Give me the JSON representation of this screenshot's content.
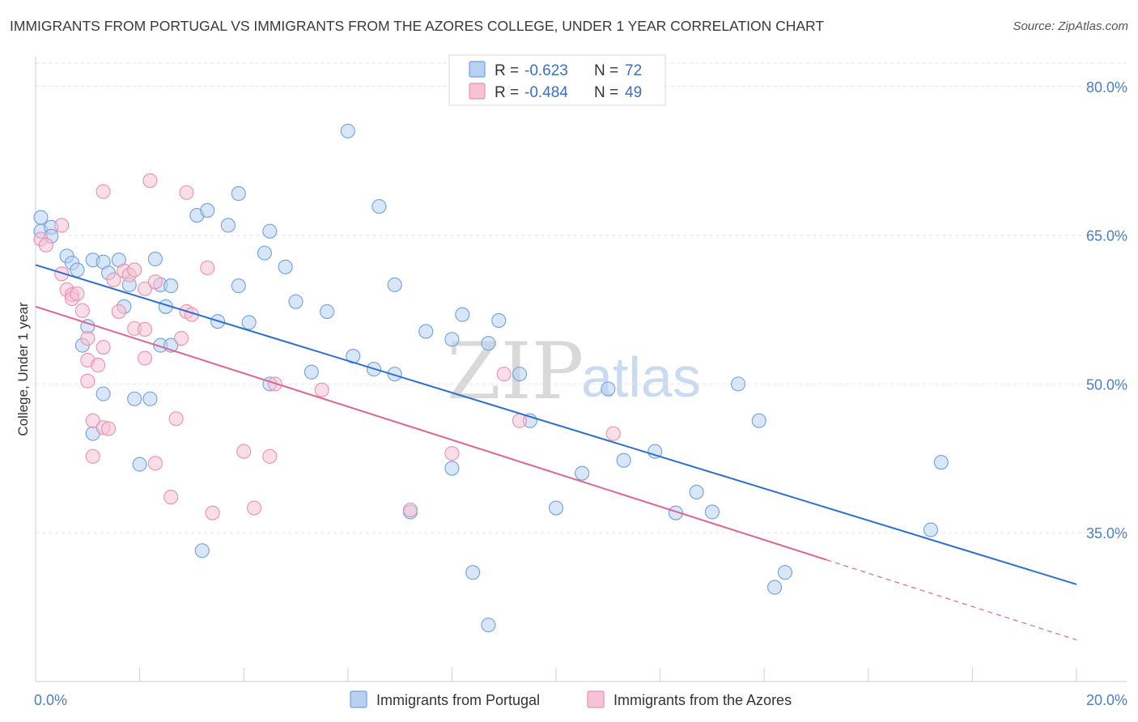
{
  "header": {
    "title": "IMMIGRANTS FROM PORTUGAL VS IMMIGRANTS FROM THE AZORES COLLEGE, UNDER 1 YEAR CORRELATION CHART",
    "source": "Source: ZipAtlas.com"
  },
  "watermark": {
    "zip": "ZIP",
    "atlas": "atlas"
  },
  "legend": {
    "r_label": "R =",
    "n_label": "N =",
    "series": [
      {
        "name": "Immigrants from Portugal",
        "r": "-0.623",
        "n": "72",
        "color": "#6fa0e0",
        "fill": "#b9d1f1",
        "line": "#2a6fd1"
      },
      {
        "name": "Immigrants from the Azores",
        "r": "-0.484",
        "n": "49",
        "color": "#ec8fae",
        "fill": "#f6c3d4",
        "line": "#e0648f"
      }
    ]
  },
  "chart_data": {
    "type": "scatter",
    "title": "IMMIGRANTS FROM PORTUGAL VS IMMIGRANTS FROM THE AZORES COLLEGE, UNDER 1 YEAR CORRELATION CHART",
    "xlabel": "",
    "ylabel": "College, Under 1 year",
    "xlim": [
      0,
      20
    ],
    "ylim": [
      20,
      83
    ],
    "x_ticks": [
      "0.0%",
      "20.0%"
    ],
    "y_ticks": [
      {
        "value": 80,
        "label": "80.0%"
      },
      {
        "value": 65,
        "label": "65.0%"
      },
      {
        "value": 50,
        "label": "50.0%"
      },
      {
        "value": 35,
        "label": "35.0%"
      }
    ],
    "series": [
      {
        "name": "Immigrants from Portugal",
        "trend": {
          "x0": 0,
          "y0": 62.0,
          "x1": 20,
          "y1": 29.8,
          "dashed_from": null
        },
        "points": [
          [
            0.1,
            66.8
          ],
          [
            0.1,
            65.4
          ],
          [
            0.3,
            65.8
          ],
          [
            0.3,
            64.9
          ],
          [
            0.6,
            62.9
          ],
          [
            0.7,
            62.2
          ],
          [
            0.8,
            61.5
          ],
          [
            1.1,
            62.5
          ],
          [
            1.0,
            55.8
          ],
          [
            0.9,
            53.9
          ],
          [
            1.3,
            62.3
          ],
          [
            1.4,
            61.2
          ],
          [
            1.6,
            62.5
          ],
          [
            1.7,
            57.8
          ],
          [
            1.8,
            60.0
          ],
          [
            1.3,
            49.0
          ],
          [
            1.9,
            48.5
          ],
          [
            2.0,
            41.9
          ],
          [
            2.2,
            48.5
          ],
          [
            2.3,
            62.6
          ],
          [
            2.4,
            60.0
          ],
          [
            2.5,
            57.8
          ],
          [
            2.6,
            59.9
          ],
          [
            2.4,
            53.9
          ],
          [
            2.6,
            53.9
          ],
          [
            3.1,
            67.0
          ],
          [
            3.3,
            67.5
          ],
          [
            3.7,
            66.0
          ],
          [
            3.9,
            69.2
          ],
          [
            3.9,
            59.9
          ],
          [
            3.5,
            56.3
          ],
          [
            4.1,
            56.2
          ],
          [
            4.4,
            63.2
          ],
          [
            4.5,
            65.4
          ],
          [
            4.8,
            61.8
          ],
          [
            5.0,
            58.3
          ],
          [
            4.5,
            50.0
          ],
          [
            5.3,
            51.2
          ],
          [
            5.6,
            57.3
          ],
          [
            6.0,
            75.5
          ],
          [
            6.1,
            52.8
          ],
          [
            6.5,
            51.5
          ],
          [
            6.6,
            67.9
          ],
          [
            6.9,
            60.0
          ],
          [
            6.9,
            51.0
          ],
          [
            7.5,
            55.3
          ],
          [
            7.2,
            37.1
          ],
          [
            8.0,
            54.5
          ],
          [
            8.2,
            57.0
          ],
          [
            8.0,
            41.5
          ],
          [
            8.4,
            31.0
          ],
          [
            8.7,
            54.1
          ],
          [
            8.9,
            56.4
          ],
          [
            8.7,
            25.7
          ],
          [
            9.3,
            51.0
          ],
          [
            9.5,
            46.3
          ],
          [
            10.0,
            37.5
          ],
          [
            10.5,
            41.0
          ],
          [
            11.0,
            49.5
          ],
          [
            11.3,
            42.3
          ],
          [
            11.9,
            43.2
          ],
          [
            12.3,
            37.0
          ],
          [
            12.7,
            39.1
          ],
          [
            13.5,
            50.0
          ],
          [
            13.0,
            37.1
          ],
          [
            13.9,
            46.3
          ],
          [
            14.2,
            29.5
          ],
          [
            14.4,
            31.0
          ],
          [
            17.2,
            35.3
          ],
          [
            17.4,
            42.1
          ],
          [
            1.1,
            45.0
          ],
          [
            3.2,
            33.2
          ]
        ]
      },
      {
        "name": "Immigrants from the Azores",
        "trend": {
          "x0": 0,
          "y0": 57.8,
          "x1": 20,
          "y1": 24.2,
          "dashed_from": 15.2
        },
        "points": [
          [
            0.1,
            64.6
          ],
          [
            0.2,
            64.0
          ],
          [
            0.5,
            66.0
          ],
          [
            0.5,
            61.1
          ],
          [
            0.6,
            59.5
          ],
          [
            0.7,
            59.0
          ],
          [
            0.7,
            58.6
          ],
          [
            0.8,
            59.1
          ],
          [
            0.9,
            57.4
          ],
          [
            1.0,
            54.6
          ],
          [
            1.0,
            52.4
          ],
          [
            1.0,
            50.3
          ],
          [
            1.1,
            46.3
          ],
          [
            1.1,
            42.7
          ],
          [
            1.2,
            51.9
          ],
          [
            1.3,
            53.7
          ],
          [
            1.3,
            45.6
          ],
          [
            1.4,
            45.5
          ],
          [
            1.6,
            57.3
          ],
          [
            1.5,
            60.5
          ],
          [
            1.3,
            69.4
          ],
          [
            1.7,
            61.4
          ],
          [
            1.8,
            61.0
          ],
          [
            1.9,
            55.6
          ],
          [
            2.1,
            55.5
          ],
          [
            2.1,
            52.6
          ],
          [
            2.1,
            59.6
          ],
          [
            2.2,
            70.5
          ],
          [
            2.3,
            60.3
          ],
          [
            2.3,
            42.0
          ],
          [
            2.6,
            38.6
          ],
          [
            2.7,
            46.5
          ],
          [
            2.9,
            69.3
          ],
          [
            2.9,
            57.3
          ],
          [
            3.0,
            57.0
          ],
          [
            3.3,
            61.7
          ],
          [
            3.4,
            37.0
          ],
          [
            4.0,
            43.2
          ],
          [
            4.2,
            37.5
          ],
          [
            4.5,
            42.7
          ],
          [
            4.6,
            50.0
          ],
          [
            5.5,
            49.4
          ],
          [
            7.2,
            37.3
          ],
          [
            8.0,
            43.0
          ],
          [
            9.0,
            51.0
          ],
          [
            9.3,
            46.3
          ],
          [
            11.1,
            45.0
          ],
          [
            2.8,
            54.6
          ],
          [
            1.9,
            61.5
          ]
        ]
      }
    ]
  }
}
